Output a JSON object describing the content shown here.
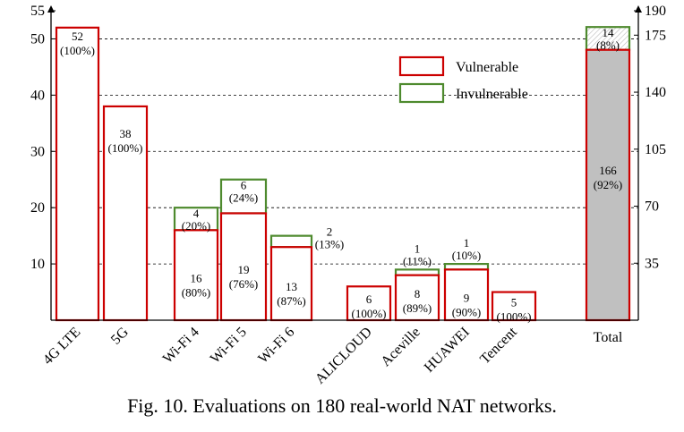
{
  "caption": "Fig. 10.  Evaluations on 180 real-world NAT networks.",
  "chart_data": {
    "type": "bar",
    "stacked": true,
    "categories": [
      "4G LTE",
      "5G",
      "Wi-Fi 4",
      "Wi-Fi 5",
      "Wi-Fi 6",
      "ALICLOUD",
      "Aceville",
      "HUAWEI",
      "Tencent",
      "Total"
    ],
    "series": [
      {
        "name": "Vulnerable",
        "values": [
          52,
          38,
          16,
          19,
          13,
          6,
          8,
          9,
          5,
          166
        ],
        "labels": [
          "52",
          "38",
          "16",
          "19",
          "13",
          "6",
          "8",
          "9",
          "5",
          "166"
        ],
        "pct_labels": [
          "(100%)",
          "(100%)",
          "(80%)",
          "(76%)",
          "(87%)",
          "(100%)",
          "(89%)",
          "(90%)",
          "(100%)",
          "(92%)"
        ]
      },
      {
        "name": "Invulnerable",
        "values": [
          0,
          0,
          4,
          6,
          2,
          0,
          1,
          1,
          0,
          14
        ],
        "labels": [
          "",
          "",
          "4",
          "6",
          "2",
          "",
          "1",
          "1",
          "",
          "14"
        ],
        "pct_labels": [
          "",
          "",
          "(20%)",
          "(24%)",
          "(13%)",
          "",
          "(11%)",
          "(10%)",
          "",
          "(8%)"
        ]
      }
    ],
    "left_axis": {
      "range": [
        0,
        55
      ],
      "ticks": [
        "10",
        "20",
        "30",
        "40",
        "50",
        "55"
      ]
    },
    "right_axis": {
      "range": [
        0,
        190
      ],
      "ticks": [
        "35",
        "70",
        "105",
        "140",
        "175",
        "190"
      ],
      "applies_to": [
        "Total"
      ]
    },
    "legend": {
      "position": "top-right",
      "entries": [
        "Vulnerable",
        "Invulnerable"
      ]
    },
    "grid": "dashed horizontal lines",
    "colors": {
      "vulnerable": "#cc0000",
      "invulnerable": "#4e8a2e",
      "total_fill": "#c0c0c0",
      "hatch": "#bbbbbb"
    }
  }
}
